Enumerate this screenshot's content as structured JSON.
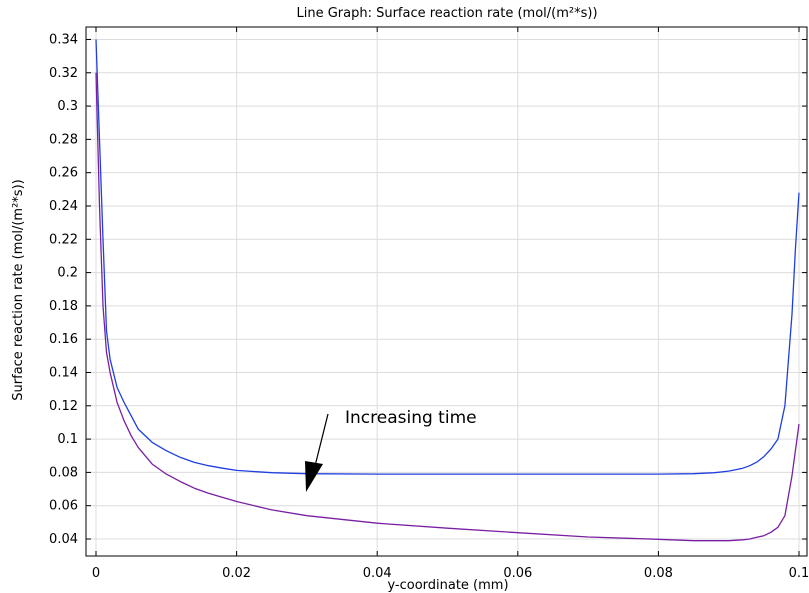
{
  "chart_data": {
    "type": "line",
    "title": "Line Graph: Surface reaction rate (mol/(m²*s))",
    "xlabel": "y-coordinate (mm)",
    "ylabel": "Surface reaction rate (mol/(m²*s))",
    "xlim": [
      0,
      0.1
    ],
    "ylim": [
      0.03,
      0.35
    ],
    "x_ticks": [
      "0",
      "0.02",
      "0.04",
      "0.06",
      "0.08",
      "0.1"
    ],
    "y_ticks": [
      "0.04",
      "0.06",
      "0.08",
      "0.1",
      "0.12",
      "0.14",
      "0.16",
      "0.18",
      "0.2",
      "0.22",
      "0.24",
      "0.26",
      "0.28",
      "0.3",
      "0.32",
      "0.34"
    ],
    "grid": true,
    "annotation": "Increasing time",
    "series": [
      {
        "color": "#1f3fe0",
        "x": [
          0,
          0.0005,
          0.001,
          0.0015,
          0.002,
          0.003,
          0.004,
          0.005,
          0.006,
          0.008,
          0.01,
          0.012,
          0.014,
          0.016,
          0.018,
          0.02,
          0.025,
          0.03,
          0.04,
          0.05,
          0.06,
          0.07,
          0.08,
          0.085,
          0.088,
          0.09,
          0.092,
          0.093,
          0.094,
          0.095,
          0.096,
          0.097,
          0.098,
          0.099,
          0.0995,
          0.1
        ],
        "y": [
          0.34,
          0.28,
          0.22,
          0.165,
          0.148,
          0.131,
          0.122,
          0.114,
          0.106,
          0.098,
          0.093,
          0.089,
          0.086,
          0.084,
          0.0825,
          0.0812,
          0.0798,
          0.0792,
          0.079,
          0.079,
          0.079,
          0.079,
          0.079,
          0.0792,
          0.0798,
          0.0808,
          0.0825,
          0.084,
          0.0862,
          0.0895,
          0.094,
          0.1,
          0.12,
          0.175,
          0.215,
          0.248
        ]
      },
      {
        "color": "#7a1fa2",
        "x": [
          0,
          0.0005,
          0.001,
          0.0015,
          0.002,
          0.003,
          0.004,
          0.005,
          0.006,
          0.008,
          0.01,
          0.012,
          0.014,
          0.016,
          0.02,
          0.025,
          0.03,
          0.04,
          0.05,
          0.06,
          0.07,
          0.08,
          0.085,
          0.09,
          0.092,
          0.093,
          0.094,
          0.095,
          0.096,
          0.097,
          0.098,
          0.099,
          0.1
        ],
        "y": [
          0.32,
          0.24,
          0.18,
          0.152,
          0.14,
          0.122,
          0.111,
          0.102,
          0.095,
          0.085,
          0.079,
          0.0745,
          0.0705,
          0.0675,
          0.0625,
          0.0575,
          0.054,
          0.0495,
          0.0465,
          0.0438,
          0.0412,
          0.0398,
          0.039,
          0.039,
          0.0395,
          0.04,
          0.041,
          0.042,
          0.044,
          0.047,
          0.054,
          0.078,
          0.109
        ]
      }
    ]
  }
}
